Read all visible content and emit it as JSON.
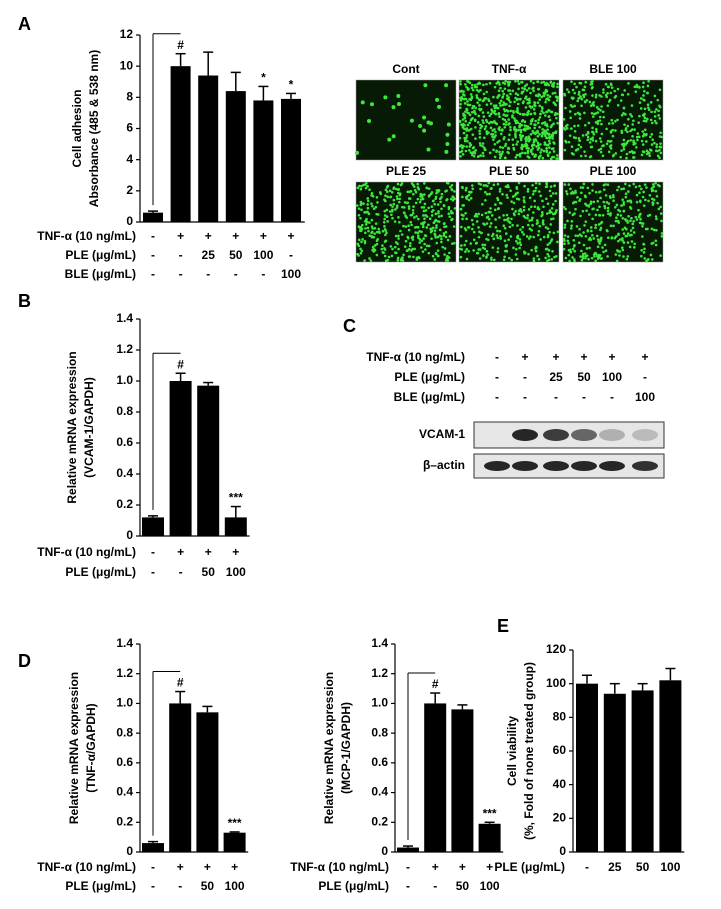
{
  "panel_labels": [
    "A",
    "B",
    "C",
    "D",
    "E"
  ],
  "chart_data": [
    {
      "type": "bar",
      "y_label": [
        "Cell adhesion",
        "Absorbance (485 & 538 nm)"
      ],
      "color": "#000000",
      "ylim": [
        0,
        12
      ],
      "yticks": [
        0,
        2,
        4,
        6,
        8,
        10,
        12
      ],
      "values": [
        0.6,
        10.0,
        9.4,
        8.4,
        7.8,
        7.9
      ],
      "errors": [
        0.1,
        0.8,
        1.5,
        1.2,
        0.9,
        0.35
      ],
      "annotations": [
        null,
        "#",
        null,
        null,
        "*",
        "*"
      ],
      "condition_rows": [
        {
          "label": "TNF-α (10 ng/mL)",
          "cells": [
            "-",
            "+",
            "+",
            "+",
            "+",
            "+"
          ]
        },
        {
          "label": "PLE (μg/mL)",
          "cells": [
            "-",
            "-",
            "25",
            "50",
            "100",
            "-"
          ]
        },
        {
          "label": "BLE (μg/mL)",
          "cells": [
            "-",
            "-",
            "-",
            "-",
            "-",
            "100"
          ]
        }
      ]
    },
    {
      "type": "bar",
      "y_label": [
        "Relative mRNA expression",
        "(VCAM-1/GAPDH)"
      ],
      "color": "#000000",
      "ylim": [
        0,
        1.4
      ],
      "yticks": [
        0,
        0.2,
        0.4,
        0.6,
        0.8,
        {
          "value": 1,
          "label": "1.0"
        },
        1.2,
        1.4
      ],
      "values": [
        0.12,
        1.0,
        0.97,
        0.12
      ],
      "errors": [
        0.01,
        0.05,
        0.02,
        0.07
      ],
      "annotations": [
        null,
        "#",
        null,
        "***"
      ],
      "condition_rows": [
        {
          "label": "TNF-α (10 ng/mL)",
          "cells": [
            "-",
            "+",
            "+",
            "+"
          ]
        },
        {
          "label": "PLE (μg/mL)",
          "cells": [
            "-",
            "-",
            "50",
            "100"
          ]
        }
      ]
    },
    {
      "type": "bar",
      "y_label": [
        "Relative mRNA expression",
        "(TNF-α/GAPDH)"
      ],
      "color": "#000000",
      "ylim": [
        0,
        1.4
      ],
      "yticks": [
        0,
        0.2,
        0.4,
        0.6,
        0.8,
        {
          "value": 1,
          "label": "1.0"
        },
        1.2,
        1.4
      ],
      "values": [
        0.06,
        1.0,
        0.94,
        0.13
      ],
      "errors": [
        0.01,
        0.08,
        0.04,
        0.005
      ],
      "annotations": [
        null,
        "#",
        null,
        "***"
      ],
      "condition_rows": [
        {
          "label": "TNF-α (10 ng/mL)",
          "cells": [
            "-",
            "+",
            "+",
            "+"
          ]
        },
        {
          "label": "PLE (μg/mL)",
          "cells": [
            "-",
            "-",
            "50",
            "100"
          ]
        }
      ]
    },
    {
      "type": "bar",
      "y_label": [
        "Relative mRNA expression",
        "(MCP-1/GAPDH)"
      ],
      "color": "#000000",
      "ylim": [
        0,
        1.4
      ],
      "yticks": [
        0,
        0.2,
        0.4,
        0.6,
        0.8,
        {
          "value": 1,
          "label": "1.0"
        },
        1.2,
        1.4
      ],
      "values": [
        0.03,
        1.0,
        0.96,
        0.19
      ],
      "errors": [
        0.01,
        0.07,
        0.03,
        0.01
      ],
      "annotations": [
        null,
        "#",
        null,
        "***"
      ],
      "condition_rows": [
        {
          "label": "TNF-α (10 ng/mL)",
          "cells": [
            "-",
            "+",
            "+",
            "+"
          ]
        },
        {
          "label": "PLE (μg/mL)",
          "cells": [
            "-",
            "-",
            "50",
            "100"
          ]
        }
      ]
    },
    {
      "type": "bar",
      "y_label": [
        "Cell viability",
        "(%, Fold of none treated group)"
      ],
      "color": "#000000",
      "ylim": [
        0,
        120
      ],
      "yticks": [
        0,
        20,
        40,
        60,
        80,
        100,
        120
      ],
      "values": [
        100,
        94,
        96,
        102
      ],
      "errors": [
        5,
        6,
        4,
        7
      ],
      "annotations": [
        null,
        null,
        null,
        null
      ],
      "condition_rows": [
        {
          "label": "PLE (μg/mL)",
          "cells": [
            "-",
            "25",
            "50",
            "100"
          ]
        }
      ]
    }
  ],
  "micrographs": {
    "labels": [
      "Cont",
      "TNF-α",
      "BLE 100",
      "PLE 25",
      "PLE 50",
      "PLE 100"
    ]
  },
  "western_blot": {
    "condition_rows": [
      {
        "label": "TNF-α (10 ng/mL)",
        "cells": [
          "-",
          "+",
          "+",
          "+",
          "+",
          "+"
        ]
      },
      {
        "label": "PLE (μg/mL)",
        "cells": [
          "-",
          "-",
          "25",
          "50",
          "100",
          "-"
        ]
      },
      {
        "label": "BLE (μg/mL)",
        "cells": [
          "-",
          "-",
          "-",
          "-",
          "-",
          "100"
        ]
      }
    ],
    "bands": [
      "VCAM-1",
      "β–actin"
    ]
  }
}
